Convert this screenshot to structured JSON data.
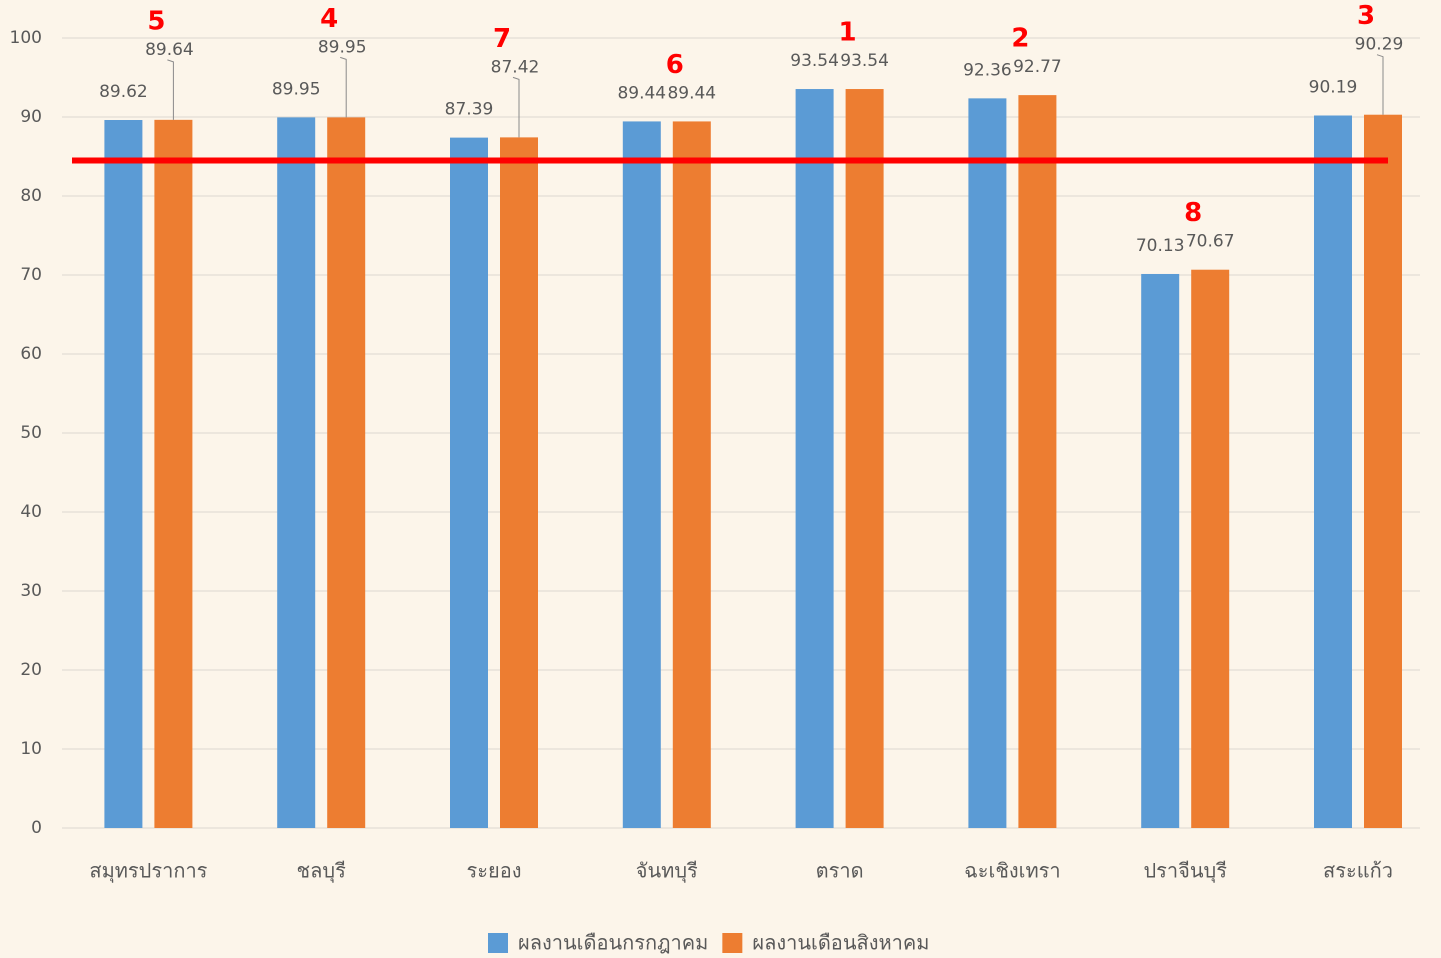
{
  "chart_data": {
    "type": "bar",
    "categories": [
      "สมุทรปราการ",
      "ชลบุรี",
      "ระยอง",
      "จันทบุรี",
      "ตราด",
      "ฉะเชิงเทรา",
      "ปราจีนบุรี",
      "สระแก้ว"
    ],
    "series": [
      {
        "name": "ผลงานเดือนกรกฎาคม",
        "color": "#5b9bd5",
        "values": [
          89.62,
          89.95,
          87.39,
          89.44,
          93.54,
          92.36,
          70.13,
          90.19
        ]
      },
      {
        "name": "ผลงานเดือนสิงหาคม",
        "color": "#ed7d31",
        "values": [
          89.64,
          89.95,
          87.42,
          89.44,
          93.54,
          92.77,
          70.67,
          90.29
        ]
      }
    ],
    "annotations": [
      "5",
      "4",
      "7",
      "6",
      "1",
      "2",
      "8",
      "3"
    ],
    "annotation_color": "#ff0000",
    "reference_line": {
      "value": 84.5,
      "color": "#ff0000"
    },
    "ylim": [
      0,
      100
    ],
    "yticks": [
      0,
      10,
      20,
      30,
      40,
      50,
      60,
      70,
      80,
      90,
      100
    ],
    "grid": true,
    "legend": "bottom"
  }
}
